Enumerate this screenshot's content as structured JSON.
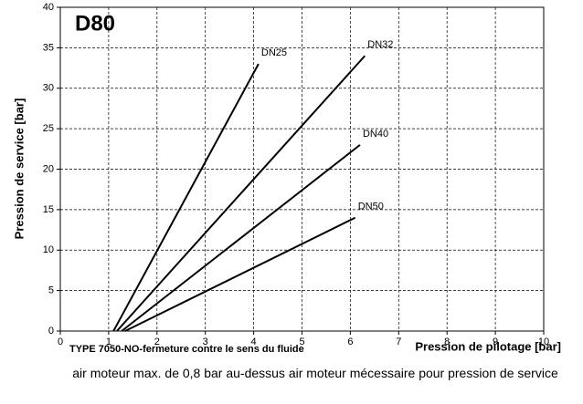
{
  "chart_data": {
    "type": "line",
    "title": "D80",
    "ylabel": "Pression de service [bar]",
    "xlabel": "Pression de pilotage [bar]",
    "caption": "TYPE 7050-NO-fermeture  contre le sens du fluide",
    "note": "air moteur max. de 0,8 bar au-dessus air moteur mécessaire pour pression de service",
    "series": [
      {
        "name": "DN25",
        "color": "#000000",
        "x": [
          1.1,
          4.1
        ],
        "values": [
          0,
          33
        ]
      },
      {
        "name": "DN32",
        "color": "#000000",
        "x": [
          1.17,
          6.3
        ],
        "values": [
          0,
          34
        ]
      },
      {
        "name": "DN40",
        "color": "#000000",
        "x": [
          1.27,
          6.2
        ],
        "values": [
          0,
          23
        ]
      },
      {
        "name": "DN50",
        "color": "#000000",
        "x": [
          1.34,
          6.1
        ],
        "values": [
          0,
          14
        ]
      }
    ],
    "xlim": [
      0,
      10
    ],
    "xticks": [
      0,
      1,
      2,
      3,
      4,
      5,
      6,
      7,
      8,
      9,
      10
    ],
    "ylim": [
      0,
      40
    ],
    "yticks": [
      0,
      5,
      10,
      15,
      20,
      25,
      30,
      35,
      40
    ],
    "grid": true
  }
}
